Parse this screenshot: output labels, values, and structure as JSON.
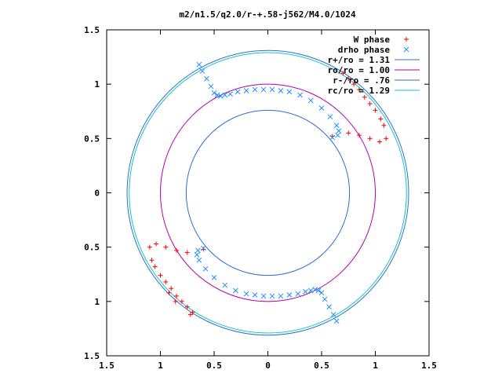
{
  "chart_data": {
    "type": "scatter",
    "title": "m2/n1.5/q2.0/r-+.58-j562/M4.0/1024",
    "xlim": [
      -1.5,
      1.5
    ],
    "ylim": [
      -1.5,
      1.5
    ],
    "xticks": [
      "1.5",
      "1",
      "0.5",
      "0",
      "0.5",
      "1",
      "1.5"
    ],
    "yticks": [
      "1.5",
      "1",
      "0.5",
      "0",
      "0.5",
      "1",
      "1.5"
    ],
    "xtick_values": [
      -1.5,
      -1,
      -0.5,
      0,
      0.5,
      1,
      1.5
    ],
    "ytick_values": [
      1.5,
      1,
      0.5,
      0,
      -0.5,
      -1,
      -1.5
    ],
    "grid": false,
    "legend_position": "top-right",
    "circles": [
      {
        "name": "r+/ro = 1.31",
        "radius": 1.31,
        "color": "#2d6fd6"
      },
      {
        "name": "ro/ro = 1.00",
        "radius": 1.0,
        "color": "#b000b0"
      },
      {
        "name": "r-/ro = .76",
        "radius": 0.76,
        "color": "#2d6fd6"
      },
      {
        "name": "rc/ro = 1.29",
        "radius": 1.29,
        "color": "#19c0c8"
      }
    ],
    "series": [
      {
        "name": "W phase",
        "marker": "+",
        "color": "#ff0000",
        "x": [
          0.7,
          0.75,
          0.8,
          0.85,
          0.9,
          0.95,
          1.0,
          1.05,
          1.08,
          1.1,
          1.04,
          0.95,
          0.85,
          0.75,
          0.6,
          -0.7,
          -0.75,
          -0.8,
          -0.85,
          -0.9,
          -0.95,
          -1.0,
          -1.05,
          -1.08,
          -1.1,
          -1.04,
          -0.95,
          -0.85,
          -0.75,
          -0.6,
          -0.92,
          -0.86,
          -0.72
        ],
        "y": [
          1.1,
          1.05,
          1.0,
          0.95,
          0.88,
          0.82,
          0.76,
          0.68,
          0.62,
          0.5,
          0.47,
          0.5,
          0.53,
          0.55,
          0.52,
          -1.1,
          -1.05,
          -1.0,
          -0.95,
          -0.88,
          -0.82,
          -0.76,
          -0.68,
          -0.62,
          -0.5,
          -0.47,
          -0.5,
          -0.53,
          -0.55,
          -0.52,
          -0.92,
          -1.0,
          -1.12
        ]
      },
      {
        "name": "drho phase",
        "marker": "x",
        "color": "#1e90ff",
        "x": [
          -0.64,
          -0.61,
          -0.57,
          -0.53,
          -0.5,
          -0.47,
          -0.44,
          -0.4,
          -0.35,
          -0.28,
          -0.2,
          -0.12,
          -0.04,
          0.04,
          0.12,
          0.2,
          0.3,
          0.4,
          0.5,
          0.58,
          0.64,
          0.66,
          0.65,
          0.6,
          0.64,
          0.61,
          0.57,
          0.53,
          0.5,
          0.47,
          0.44,
          0.4,
          0.35,
          0.28,
          0.2,
          0.12,
          0.04,
          -0.04,
          -0.12,
          -0.2,
          -0.3,
          -0.4,
          -0.5,
          -0.58,
          -0.64,
          -0.66,
          -0.65,
          -0.6
        ],
        "y": [
          1.18,
          1.12,
          1.05,
          0.98,
          0.92,
          0.9,
          0.89,
          0.9,
          0.91,
          0.93,
          0.94,
          0.95,
          0.95,
          0.95,
          0.94,
          0.93,
          0.9,
          0.85,
          0.78,
          0.7,
          0.62,
          0.57,
          0.53,
          0.51,
          -1.18,
          -1.12,
          -1.05,
          -0.98,
          -0.92,
          -0.9,
          -0.89,
          -0.9,
          -0.91,
          -0.93,
          -0.94,
          -0.95,
          -0.95,
          -0.95,
          -0.94,
          -0.93,
          -0.9,
          -0.85,
          -0.78,
          -0.7,
          -0.62,
          -0.57,
          -0.53,
          -0.51
        ]
      }
    ]
  }
}
